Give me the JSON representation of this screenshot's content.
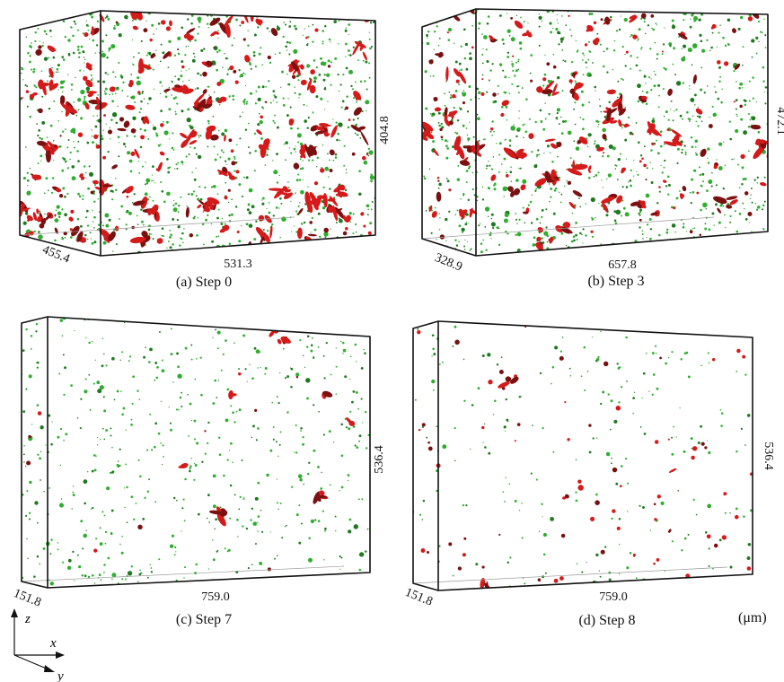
{
  "panels": [
    {
      "id": "a",
      "caption": "(a) Step 0",
      "dim_x": "531.3",
      "dim_y": "455.4",
      "dim_z": "404.8",
      "green_particles": 1150,
      "red_clusters": 110,
      "red_small": 90
    },
    {
      "id": "b",
      "caption": "(b) Step 3",
      "dim_x": "657.8",
      "dim_y": "328.9",
      "dim_z": "472.1",
      "green_particles": 1050,
      "red_clusters": 90,
      "red_small": 70
    },
    {
      "id": "c",
      "caption": "(c) Step 7",
      "dim_x": "759.0",
      "dim_y": "151.8",
      "dim_z": "536.4",
      "green_particles": 560,
      "red_clusters": 7,
      "red_small": 10
    },
    {
      "id": "d",
      "caption": "(d) Step 8",
      "dim_x": "759.0",
      "dim_y": "151.8",
      "dim_z": "536.4",
      "green_particles": 230,
      "red_clusters": 6,
      "red_small": 70
    }
  ],
  "unit": "(μm)",
  "axes": {
    "z": "z",
    "x": "x",
    "y": "y"
  },
  "colors": {
    "green": "#2fae2f",
    "dark_green": "#1f7a1f",
    "red": "#d51a1a",
    "dark_red": "#7a1010"
  }
}
